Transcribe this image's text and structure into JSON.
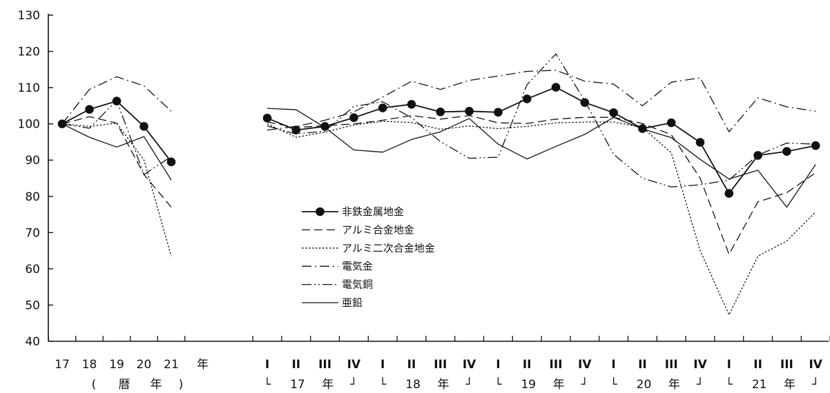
{
  "chart_data": {
    "type": "line",
    "ylim": [
      40,
      130
    ],
    "yticks": [
      40,
      50,
      60,
      70,
      80,
      90,
      100,
      110,
      120,
      130
    ],
    "annual": {
      "categories": [
        "17",
        "18",
        "19",
        "20",
        "21"
      ],
      "unit_label": "年",
      "group_label": [
        "(",
        "暦",
        "年",
        ")"
      ]
    },
    "quarterly": {
      "categories": [
        "I",
        "II",
        "III",
        "IV",
        "I",
        "II",
        "III",
        "IV",
        "I",
        "II",
        "III",
        "IV",
        "I",
        "II",
        "III",
        "IV",
        "I",
        "II",
        "III",
        "IV"
      ],
      "year_groups": [
        {
          "open": "└",
          "year": "17",
          "year_suffix": "年",
          "close": "┘"
        },
        {
          "open": "└",
          "year": "18",
          "year_suffix": "年",
          "close": "┘"
        },
        {
          "open": "└",
          "year": "19",
          "year_suffix": "年",
          "close": "┘"
        },
        {
          "open": "└",
          "year": "20",
          "year_suffix": "年",
          "close": "┘"
        },
        {
          "open": "└",
          "year": "21",
          "year_suffix": "年",
          "close": "┘"
        }
      ]
    },
    "series": [
      {
        "name": "非鉄金属地金",
        "style": "solid-marker",
        "color": "#111111",
        "annual_values": [
          100,
          104,
          106.3,
          99.3,
          89.5
        ],
        "quarterly_values": [
          101.6,
          98.3,
          99.3,
          101.7,
          104.4,
          105.4,
          103.3,
          103.5,
          103.2,
          106.9,
          110.1,
          105.9,
          103.1,
          98.7,
          100.3,
          94.9,
          80.8,
          91.3,
          92.4,
          94.0
        ]
      },
      {
        "name": "アルミ合金地金",
        "style": "dashed",
        "color": "#111111",
        "annual_values": [
          100,
          102,
          100.2,
          86,
          77
        ],
        "quarterly_values": [
          100.5,
          99,
          99.5,
          100,
          101,
          102.3,
          101.3,
          102.3,
          100.3,
          100.1,
          101.3,
          101.8,
          101.8,
          100.1,
          97,
          85,
          64,
          78.5,
          81,
          86.5
        ]
      },
      {
        "name": "アルミ二次合金地金",
        "style": "dotted",
        "color": "#111111",
        "annual_values": [
          100,
          99.3,
          100.2,
          90,
          63.5
        ],
        "quarterly_values": [
          100,
          96.3,
          97.7,
          99.7,
          100.7,
          100.4,
          98.5,
          99.4,
          98.7,
          99.3,
          100.3,
          100.5,
          100.5,
          99,
          92,
          65,
          47.3,
          63.5,
          67.7,
          75.7
        ]
      },
      {
        "name": "電気金",
        "style": "dashdot",
        "color": "#111111",
        "annual_values": [
          100,
          109.5,
          113,
          110.5,
          103.5
        ],
        "quarterly_values": [
          98.3,
          99.3,
          101,
          103.3,
          107.4,
          111.8,
          109.5,
          112,
          113.2,
          114.5,
          114.8,
          111.8,
          111,
          105,
          111.5,
          112.7,
          97.8,
          107.2,
          104.7,
          103.5
        ]
      },
      {
        "name": "電気銅",
        "style": "dashdotdot",
        "color": "#111111",
        "annual_values": [
          100,
          98.8,
          106.5,
          86,
          91
        ],
        "quarterly_values": [
          99.4,
          97.2,
          98,
          104.8,
          106.1,
          101.7,
          95.1,
          90.5,
          90.8,
          110.8,
          119.3,
          106.4,
          91.6,
          85,
          82.6,
          83.2,
          84.5,
          91.4,
          94.7,
          94.4
        ]
      },
      {
        "name": "亜鉛",
        "style": "solid",
        "color": "#111111",
        "annual_values": [
          100,
          96.3,
          93.6,
          96.5,
          84.5
        ],
        "quarterly_values": [
          104.3,
          103.9,
          99,
          92.8,
          92.2,
          95.7,
          97.8,
          101.5,
          94.4,
          90.3,
          93.8,
          97.1,
          101.8,
          98.6,
          96.2,
          90.2,
          84.8,
          87.2,
          77,
          88.8
        ]
      }
    ],
    "legend_placement": "center"
  }
}
